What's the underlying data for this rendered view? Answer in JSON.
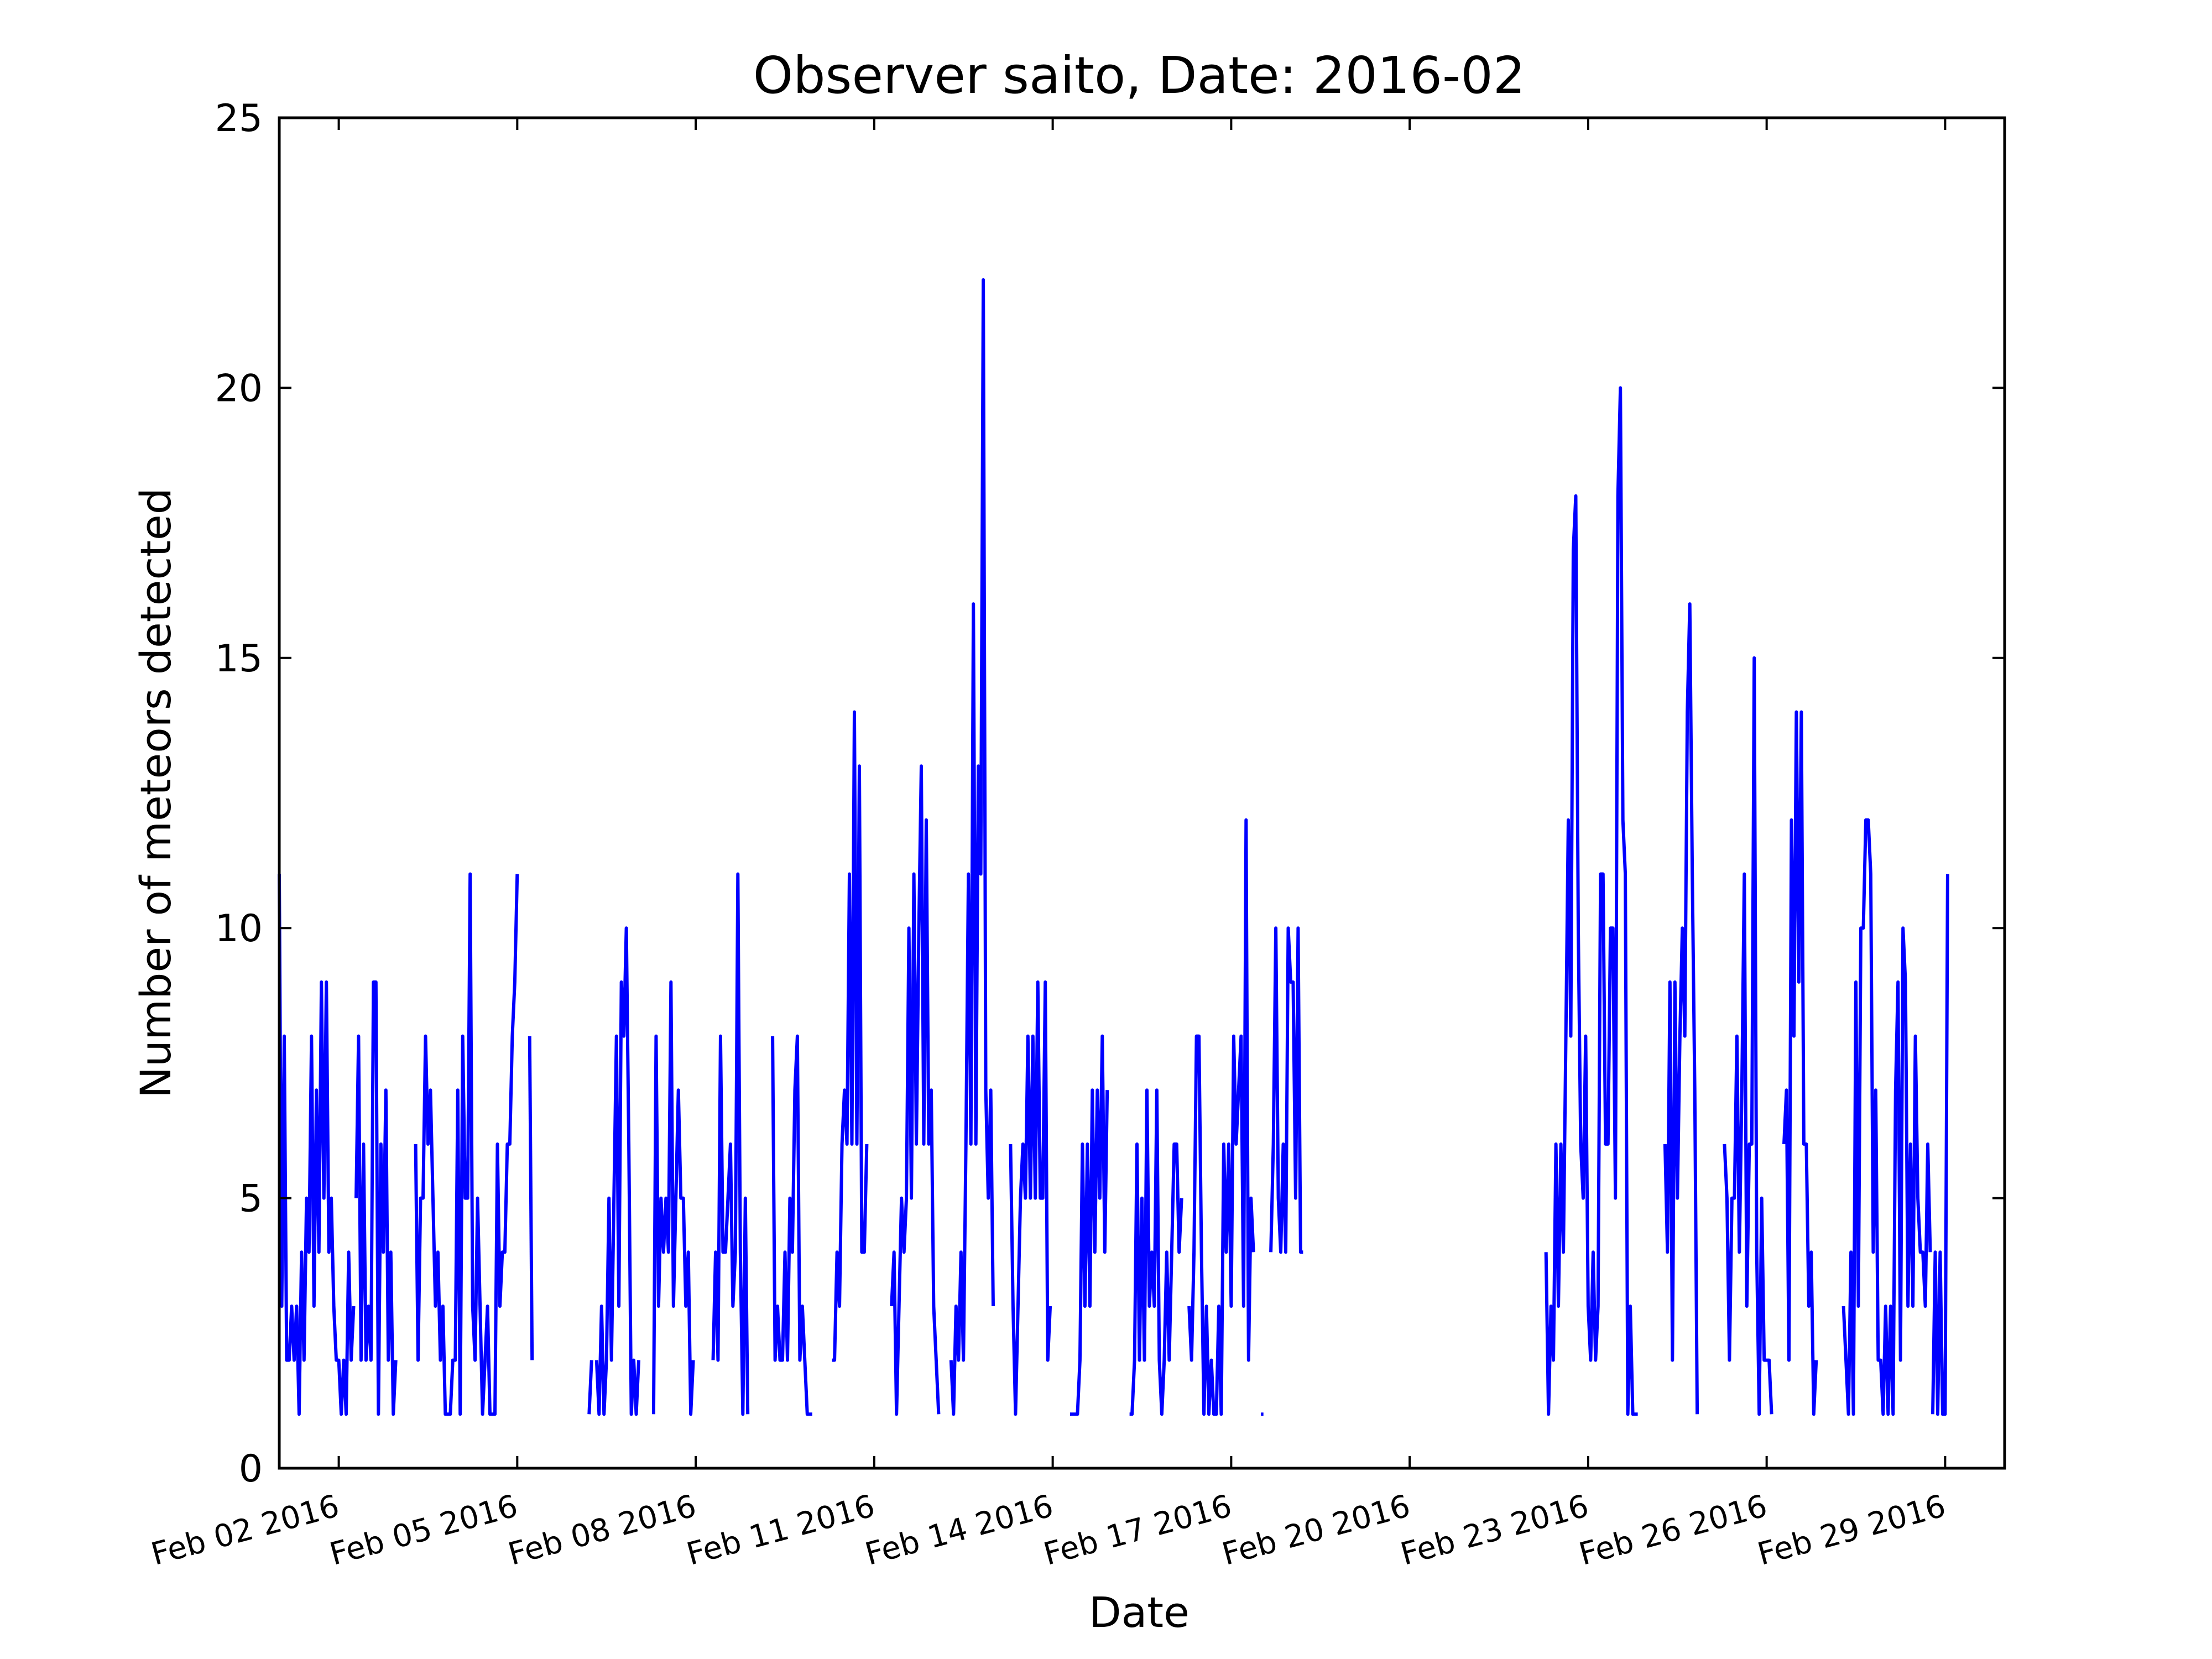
{
  "chart_data": {
    "type": "line",
    "title": "Observer saito, Date: 2016-02",
    "xlabel": "Date",
    "ylabel": "Number of meteors detected",
    "ylim": [
      0,
      25
    ],
    "xlim": [
      "2016-02-01 00:00",
      "2016-03-01 00:00"
    ],
    "grid": false,
    "line_color": "#0000ff",
    "y_ticks": [
      0,
      5,
      10,
      15,
      20,
      25
    ],
    "x_ticks": [
      {
        "date": "2016-02-02",
        "label": "Feb 02 2016"
      },
      {
        "date": "2016-02-05",
        "label": "Feb 05 2016"
      },
      {
        "date": "2016-02-08",
        "label": "Feb 08 2016"
      },
      {
        "date": "2016-02-11",
        "label": "Feb 11 2016"
      },
      {
        "date": "2016-02-14",
        "label": "Feb 14 2016"
      },
      {
        "date": "2016-02-17",
        "label": "Feb 17 2016"
      },
      {
        "date": "2016-02-20",
        "label": "Feb 20 2016"
      },
      {
        "date": "2016-02-23",
        "label": "Feb 23 2016"
      },
      {
        "date": "2016-02-26",
        "label": "Feb 26 2016"
      },
      {
        "date": "2016-02-29",
        "label": "Feb 29 2016"
      }
    ],
    "series": [
      {
        "segments": [
          {
            "start": "2016-02-01 00:00",
            "step_hours": 1,
            "values": [
              11,
              3,
              8,
              2,
              2,
              3,
              2,
              3,
              1,
              4,
              2,
              5,
              4,
              8,
              3,
              7,
              4,
              9,
              5,
              9,
              4,
              5,
              3,
              2,
              2,
              1,
              2,
              1,
              4,
              2,
              3
            ]
          },
          {
            "start": "2016-02-02 07:00",
            "step_hours": 1,
            "values": [
              5,
              8,
              2,
              6,
              2,
              3,
              2,
              9,
              9,
              1,
              6,
              4,
              7,
              2,
              4,
              1,
              2
            ]
          },
          {
            "start": "2016-02-03 07:00",
            "step_hours": 1,
            "values": [
              6,
              2,
              5,
              5,
              8,
              6,
              7,
              5,
              3,
              4,
              2,
              3,
              1,
              1,
              1,
              2,
              2,
              7,
              1,
              8,
              5,
              5,
              11,
              3,
              2,
              5,
              3,
              1,
              2,
              3,
              1,
              1,
              1,
              6,
              3,
              4,
              4,
              6,
              6,
              8,
              9,
              11
            ]
          },
          {
            "start": "2016-02-05 05:00",
            "step_hours": 1,
            "values": [
              8,
              2
            ]
          },
          {
            "start": "2016-02-06 05:00",
            "step_hours": 1,
            "values": [
              1,
              2
            ]
          },
          {
            "start": "2016-02-06 08:00",
            "step_hours": 1,
            "values": [
              2,
              1,
              3,
              1,
              2,
              5,
              2,
              5,
              8,
              3,
              9,
              8,
              10,
              6,
              1,
              2,
              1,
              2
            ]
          },
          {
            "start": "2016-02-07 07:00",
            "step_hours": 1,
            "values": [
              1,
              8,
              3,
              5,
              4,
              5,
              4,
              9,
              3,
              5,
              7,
              5,
              5,
              3,
              4,
              1,
              2
            ]
          },
          {
            "start": "2016-02-08 07:00",
            "step_hours": 1,
            "values": [
              2,
              4,
              2,
              8,
              4,
              4,
              5,
              6,
              3,
              4,
              11,
              4,
              1,
              5,
              1
            ]
          },
          {
            "start": "2016-02-09 07:00",
            "step_hours": 1,
            "values": [
              8,
              2,
              3,
              2,
              2,
              4,
              2,
              5,
              4,
              7,
              8,
              2,
              3,
              2,
              1,
              1,
              1
            ]
          },
          {
            "start": "2016-02-10 07:00",
            "step_hours": 1,
            "values": [
              2,
              2,
              4,
              3,
              6,
              7,
              6,
              11,
              6,
              14,
              6,
              13,
              4,
              4,
              6
            ]
          },
          {
            "start": "2016-02-11 07:00",
            "step_hours": 1,
            "values": [
              3,
              4,
              1,
              3,
              5,
              4,
              5,
              10,
              5,
              11,
              6,
              10,
              13,
              6,
              12,
              6,
              7,
              3,
              2,
              1
            ]
          },
          {
            "start": "2016-02-12 07:00",
            "step_hours": 1,
            "values": [
              2,
              1,
              3,
              2,
              4,
              2,
              6,
              11,
              6,
              16,
              6,
              13,
              11,
              22,
              7,
              5,
              7,
              3
            ]
          },
          {
            "start": "2016-02-13 07:00",
            "step_hours": 1,
            "values": [
              6,
              3,
              1,
              3,
              5,
              6,
              5,
              8,
              5,
              8,
              5,
              9,
              5,
              5,
              9,
              2,
              3
            ]
          },
          {
            "start": "2016-02-14 07:00",
            "step_hours": 1,
            "values": [
              1,
              1,
              1,
              1,
              2,
              6,
              3,
              6,
              3,
              7,
              4,
              7,
              5,
              8,
              4,
              7
            ]
          },
          {
            "start": "2016-02-15 07:00",
            "step_hours": 1,
            "values": [
              1,
              1,
              2,
              6,
              2,
              5,
              2,
              7,
              3,
              4,
              3,
              7,
              2,
              1,
              2,
              4,
              2,
              4,
              6,
              6,
              4,
              5
            ]
          },
          {
            "start": "2016-02-16 07:00",
            "step_hours": 1,
            "values": [
              3,
              2,
              4,
              8,
              8,
              4,
              1,
              3,
              1,
              2,
              1,
              1,
              3,
              1,
              6,
              4,
              6,
              3,
              8,
              6,
              7,
              8,
              3,
              12,
              2,
              5,
              4
            ]
          },
          {
            "start": "2016-02-17 12:00",
            "step_hours": 1,
            "values": [
              1,
              1
            ]
          },
          {
            "start": "2016-02-17 16:00",
            "step_hours": 1,
            "values": [
              4,
              6,
              10,
              5,
              4,
              6,
              4,
              10,
              9,
              9,
              5,
              10,
              4,
              4
            ]
          },
          {
            "start": "2016-02-22 07:00",
            "step_hours": 1,
            "values": [
              4,
              1,
              3,
              2,
              6,
              3,
              6,
              4,
              8,
              12,
              8,
              17,
              18,
              10,
              6,
              5,
              8,
              3,
              2,
              4,
              2,
              3,
              11,
              11,
              6,
              6,
              10,
              10,
              5,
              18,
              20,
              12,
              11,
              1,
              3,
              1,
              1,
              1
            ]
          },
          {
            "start": "2016-02-24 07:00",
            "step_hours": 1,
            "values": [
              6,
              4,
              9,
              2,
              9,
              5,
              8,
              10,
              8,
              14,
              16,
              11,
              7,
              1
            ]
          },
          {
            "start": "2016-02-25 07:00",
            "step_hours": 1,
            "values": [
              6,
              5,
              2,
              5,
              5,
              8,
              4,
              7,
              11,
              3,
              6,
              6,
              15,
              4,
              1,
              5,
              2,
              2,
              2,
              1
            ]
          },
          {
            "start": "2016-02-26 07:00",
            "step_hours": 1,
            "values": [
              6,
              7,
              2,
              12,
              8,
              14,
              9,
              14,
              6,
              6,
              3,
              4,
              1,
              2
            ]
          },
          {
            "start": "2016-02-27 07:00",
            "step_hours": 1,
            "values": [
              3,
              2,
              1,
              4,
              1,
              9,
              3,
              10,
              10,
              12,
              12,
              11,
              4,
              7,
              2,
              2,
              1,
              3,
              1,
              3,
              1,
              7,
              9,
              2,
              10,
              9,
              3,
              6,
              3,
              8,
              5,
              4,
              4,
              3,
              6,
              4
            ]
          },
          {
            "start": "2016-02-28 19:00",
            "step_hours": 1,
            "values": [
              1,
              4,
              1,
              4,
              1,
              1,
              11
            ]
          }
        ]
      }
    ]
  }
}
